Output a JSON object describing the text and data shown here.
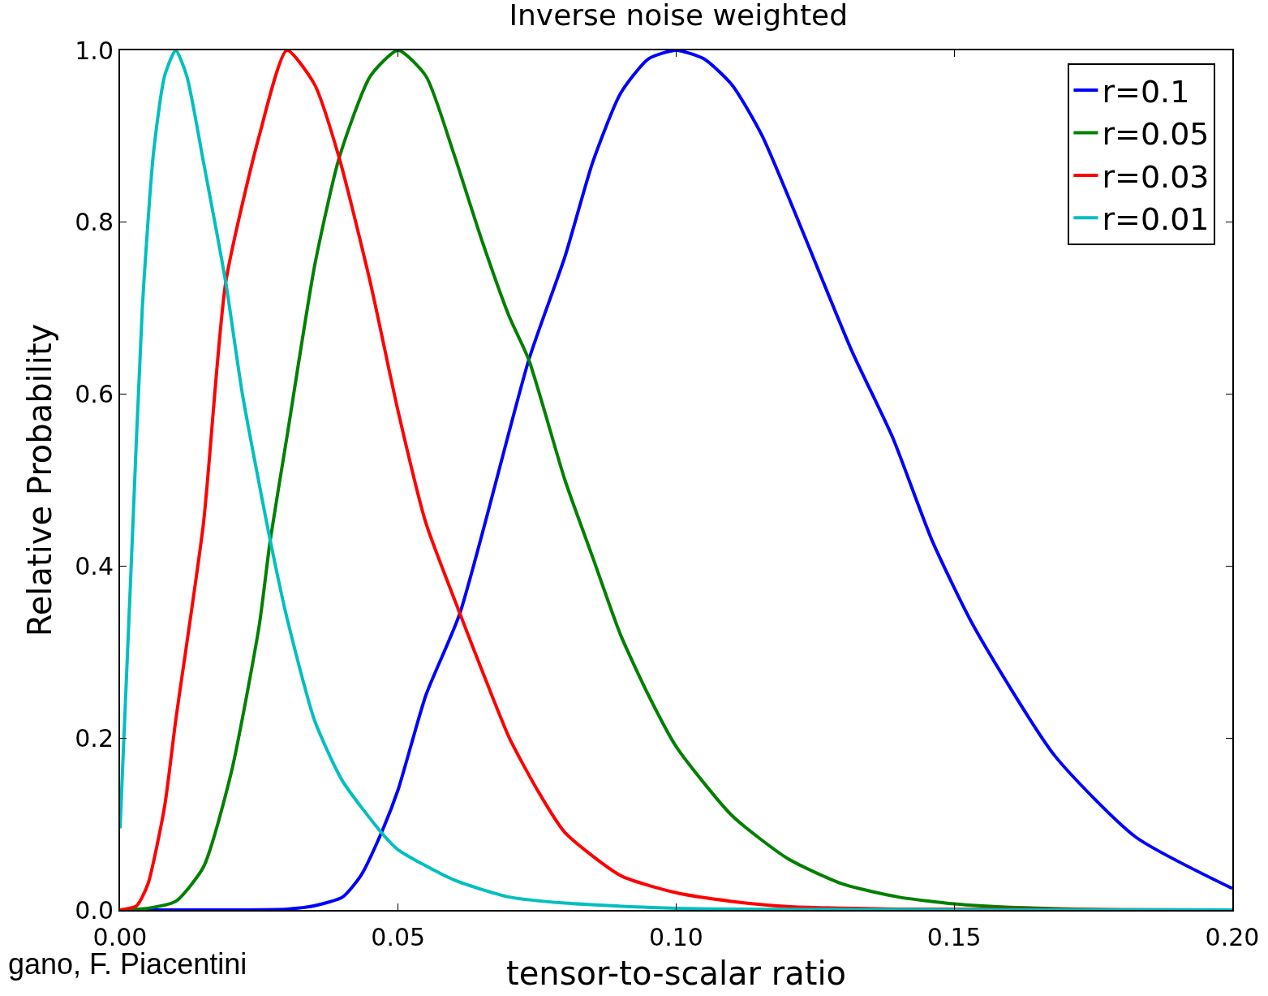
{
  "chart_data": {
    "type": "line",
    "title": "Inverse noise weighted",
    "xlabel": "tensor-to-scalar ratio",
    "ylabel": "Relative Probability",
    "xlim": [
      0,
      0.2
    ],
    "xticks": [
      {
        "value": 0,
        "label": "0.00"
      },
      0.05,
      {
        "value": 0.1,
        "label": "0.10"
      },
      0.15,
      {
        "value": 0.2,
        "label": "0.20"
      }
    ],
    "ylim": [
      0,
      1
    ],
    "yticks": [
      {
        "value": 0,
        "label": "0.0"
      },
      0.2,
      0.4,
      0.6,
      0.8,
      {
        "value": 1,
        "label": "1.0"
      }
    ],
    "grid": false,
    "legend": "top right",
    "marker": "none",
    "line_style": "solid",
    "annotations": [
      "gano, F. Piacentini"
    ],
    "series": [
      {
        "name": "r=0.1",
        "color": "#0000ff",
        "x": [
          0,
          0.02,
          0.03,
          0.035,
          0.04,
          0.0433,
          0.047,
          0.05,
          0.055,
          0.0611,
          0.0735,
          0.08,
          0.085,
          0.09,
          0.095,
          0.1,
          0.105,
          0.11,
          0.1155,
          0.1316,
          0.1389,
          0.146,
          0.1535,
          0.168,
          0.1826,
          0.2
        ],
        "values": [
          0,
          0,
          0.001,
          0.005,
          0.015,
          0.04,
          0.09,
          0.14,
          0.25,
          0.345,
          0.64,
          0.76,
          0.87,
          0.95,
          0.99,
          1,
          0.99,
          0.96,
          0.9,
          0.65,
          0.55,
          0.43,
          0.33,
          0.18,
          0.085,
          0.025
        ]
      },
      {
        "name": "r=0.05",
        "color": "#008000",
        "x": [
          0,
          0.005,
          0.01,
          0.015,
          0.02,
          0.025,
          0.027,
          0.03,
          0.035,
          0.0394,
          0.045,
          0.05,
          0.055,
          0.06,
          0.065,
          0.07,
          0.0735,
          0.08,
          0.085,
          0.09,
          0.095,
          0.1,
          0.11,
          0.12,
          0.13,
          0.14,
          0.15,
          0.16,
          0.18,
          0.2
        ],
        "values": [
          0,
          0.002,
          0.01,
          0.05,
          0.16,
          0.33,
          0.43,
          0.55,
          0.75,
          0.875,
          0.97,
          1,
          0.97,
          0.88,
          0.78,
          0.69,
          0.64,
          0.5,
          0.41,
          0.32,
          0.25,
          0.19,
          0.11,
          0.06,
          0.03,
          0.015,
          0.007,
          0.003,
          0,
          0
        ]
      },
      {
        "name": "r=0.03",
        "color": "#ff0000",
        "x": [
          0,
          0.003,
          0.005,
          0.008,
          0.01,
          0.015,
          0.019,
          0.025,
          0.03,
          0.035,
          0.0394,
          0.045,
          0.05,
          0.055,
          0.0611,
          0.065,
          0.07,
          0.075,
          0.08,
          0.09,
          0.1,
          0.11,
          0.12,
          0.14,
          0.2
        ],
        "values": [
          0,
          0.005,
          0.03,
          0.12,
          0.22,
          0.45,
          0.73,
          0.9,
          1,
          0.96,
          0.875,
          0.73,
          0.58,
          0.45,
          0.345,
          0.28,
          0.2,
          0.14,
          0.09,
          0.04,
          0.02,
          0.01,
          0.004,
          0.001,
          0
        ]
      },
      {
        "name": "r=0.01",
        "color": "#00bfbf",
        "x": [
          0,
          0.002,
          0.004,
          0.006,
          0.008,
          0.01,
          0.012,
          0.015,
          0.019,
          0.022,
          0.027,
          0.03,
          0.035,
          0.04,
          0.047,
          0.05,
          0.06,
          0.07,
          0.08,
          0.1,
          0.2
        ],
        "values": [
          0.095,
          0.4,
          0.7,
          0.88,
          0.97,
          1,
          0.97,
          0.87,
          0.73,
          0.6,
          0.43,
          0.34,
          0.22,
          0.15,
          0.09,
          0.07,
          0.035,
          0.015,
          0.008,
          0.002,
          0
        ]
      }
    ]
  }
}
